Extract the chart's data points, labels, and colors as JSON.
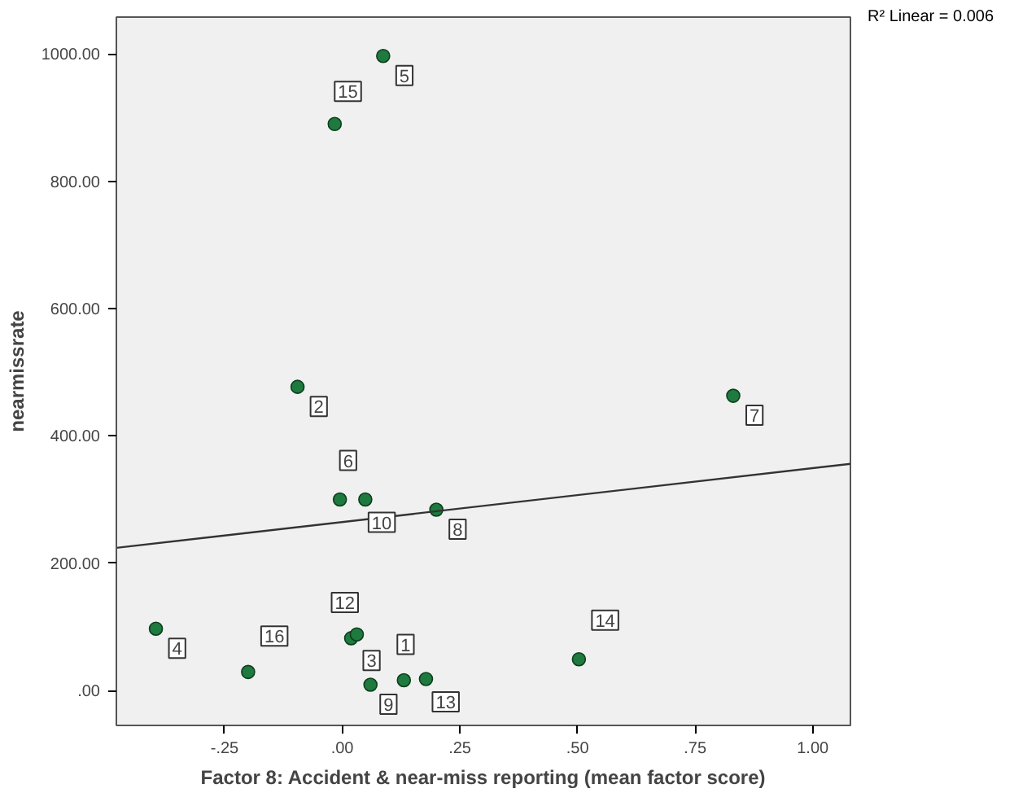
{
  "chart_data": {
    "type": "scatter",
    "xlabel": "Factor 8: Accident & near-miss reporting (mean factor score)",
    "ylabel": "nearmissrate",
    "xlim": [
      -0.48,
      1.08
    ],
    "ylim": [
      -55,
      1058
    ],
    "xticks": [
      {
        "value": -0.25,
        "label": "-.25"
      },
      {
        "value": 0,
        "label": ".00"
      },
      {
        "value": 0.25,
        "label": ".25"
      },
      {
        "value": 0.5,
        "label": ".50"
      },
      {
        "value": 0.75,
        "label": ".75"
      },
      {
        "value": 1,
        "label": "1.00"
      }
    ],
    "yticks": [
      {
        "value": 0,
        "label": ".00"
      },
      {
        "value": 200,
        "label": "200.00"
      },
      {
        "value": 400,
        "label": "400.00"
      },
      {
        "value": 600,
        "label": "600.00"
      },
      {
        "value": 800,
        "label": "800.00"
      },
      {
        "value": 1000,
        "label": "1000.00"
      }
    ],
    "grid": false,
    "series": [
      {
        "marker": "circle",
        "color": "#1e7a3e",
        "x": [
          0.087,
          -0.016,
          -0.095,
          -0.005,
          0.049,
          0.2,
          -0.396,
          -0.2,
          0.019,
          0.031,
          0.06,
          0.131,
          0.178,
          0.831,
          0.503
        ],
        "values": [
          997,
          890,
          477,
          300,
          300,
          284,
          97,
          29,
          82,
          88,
          9,
          16,
          18,
          463,
          49
        ]
      },
      {
        "type": "line",
        "color": "#333333",
        "x": [
          -0.48,
          1.08
        ],
        "values": [
          224,
          356
        ]
      }
    ],
    "annotations": [
      {
        "text": "5",
        "x": 0.087,
        "y": 997
      },
      {
        "text": "15",
        "x": -0.016,
        "y": 890
      },
      {
        "text": "2",
        "x": -0.095,
        "y": 477
      },
      {
        "text": "6",
        "x": -0.005,
        "y": 300
      },
      {
        "text": "10",
        "x": 0.049,
        "y": 300
      },
      {
        "text": "8",
        "x": 0.2,
        "y": 284
      },
      {
        "text": "4",
        "x": -0.396,
        "y": 97
      },
      {
        "text": "16",
        "x": -0.2,
        "y": 29
      },
      {
        "text": "12",
        "x": 0.019,
        "y": 82
      },
      {
        "text": "3",
        "x": 0.031,
        "y": 88
      },
      {
        "text": "9",
        "x": 0.06,
        "y": 9
      },
      {
        "text": "1",
        "x": 0.131,
        "y": 16
      },
      {
        "text": "13",
        "x": 0.178,
        "y": 18
      },
      {
        "text": "7",
        "x": 0.831,
        "y": 463
      },
      {
        "text": "14",
        "x": 0.503,
        "y": 49
      },
      "R² Linear = 0.006"
    ]
  }
}
